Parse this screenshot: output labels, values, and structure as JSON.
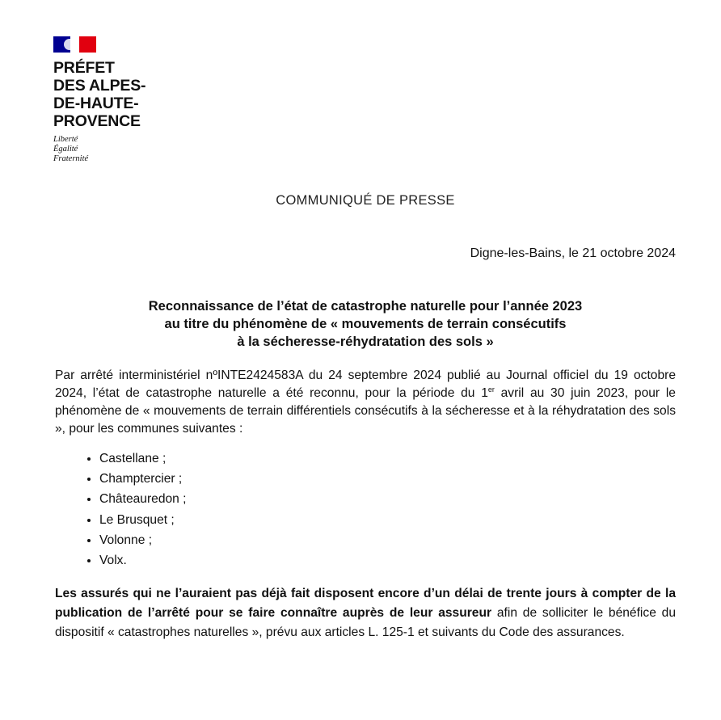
{
  "logo": {
    "flag_colors": {
      "blue": "#000091",
      "white": "#ffffff",
      "red": "#e1000f"
    },
    "lines": [
      "PRÉFET",
      "DES ALPES-",
      "DE-HAUTE-",
      "PROVENCE"
    ],
    "devise": [
      "Liberté",
      "Égalité",
      "Fraternité"
    ]
  },
  "header": {
    "label": "COMMUNIQUÉ DE PRESSE",
    "date": "Digne-les-Bains, le 21 octobre 2024"
  },
  "title": [
    "Reconnaissance de l’état de catastrophe naturelle pour l’année 2023",
    "au titre du phénomène de « mouvements de terrain consécutifs",
    "à la sécheresse-réhydratation des sols »"
  ],
  "intro": {
    "before_sup": "Par arrêté interministériel nºINTE2424583A du 24 septembre 2024 publié au Journal officiel du 19 octobre 2024, l’état de catastrophe naturelle a été reconnu, pour la période du 1",
    "sup": "er",
    "after_sup": " avril au 30 juin 2023, pour le phénomène de « mouvements de terrain différentiels consécutifs à la sécheresse et à la réhydratation des sols », pour les communes suivantes :"
  },
  "communes": [
    "Castellane ;",
    "Champtercier ;",
    "Châteauredon ;",
    "Le Brusquet ;",
    "Volonne ;",
    "Volx."
  ],
  "closing": {
    "bold": "Les assurés qui ne l’auraient pas déjà fait disposent encore d’un délai de trente jours à compter de la publication de l’arrêté pour se faire connaître auprès de leur assureur",
    "rest": " afin de solliciter le bénéfice du dispositif « catastrophes naturelles », prévu aux articles L. 125-1 et suivants du Code des assurances."
  }
}
